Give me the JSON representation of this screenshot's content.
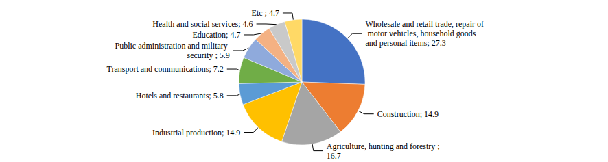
{
  "chart_data": {
    "type": "pie",
    "categories": [
      "Wholesale and retail trade, repair of motor vehicles, household goods and personal items",
      "Construction",
      "Agriculture, hunting and forestry",
      "Industrial production",
      "Hotels and restaurants",
      "Transport and communications",
      "Public administration and military security",
      "Education",
      "Health and social services",
      "Etc"
    ],
    "values": [
      27.3,
      14.9,
      16.7,
      14.9,
      5.8,
      7.2,
      5.9,
      4.7,
      4.6,
      4.7
    ],
    "value_labels": [
      "Wholesale and retail trade, repair of motor vehicles, household goods and personal items; 27.3",
      "Construction; 14.9",
      "Agriculture, hunting and forestry ; 16.7",
      "Industrial production; 14.9",
      "Hotels and restaurants; 5.8",
      "Transport and communications; 7.2",
      "Public administration and military security ; 5.9",
      "Education; 4.7",
      "Health and social services; 4.6",
      "Etc ; 4.7"
    ],
    "colors": [
      "#4472c4",
      "#ed7d31",
      "#a5a5a5",
      "#ffc000",
      "#5b9bd5",
      "#70ad47",
      "#8faadc",
      "#f4b183",
      "#c9c9c9",
      "#ffd966"
    ],
    "data_labels": true
  }
}
